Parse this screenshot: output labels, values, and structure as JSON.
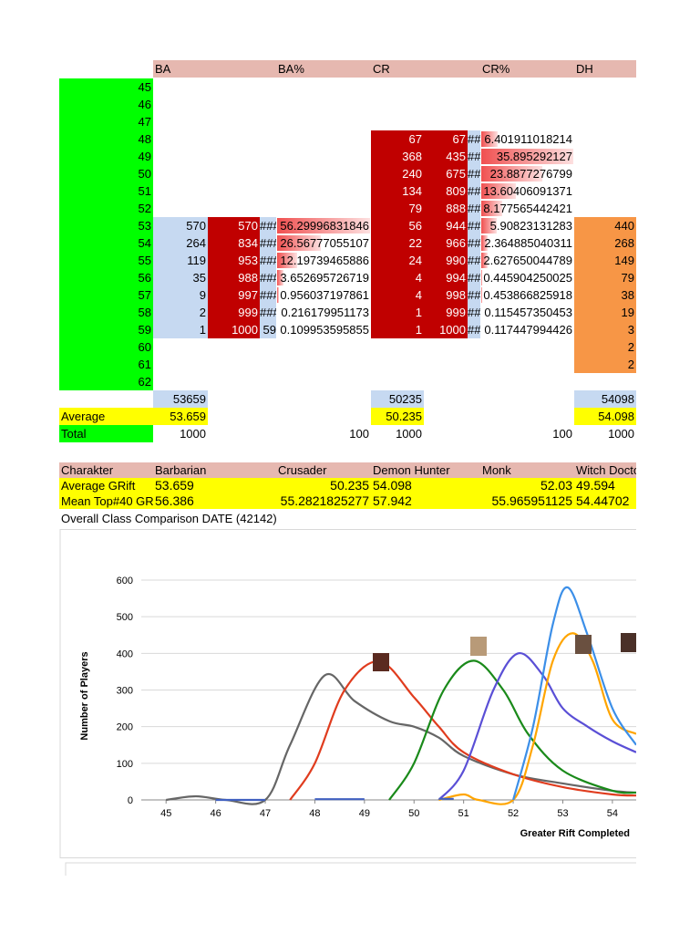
{
  "sheet": {
    "header": [
      "BA",
      "BA%",
      "CR",
      "CR%",
      "DH"
    ],
    "row_labels": [
      45,
      46,
      47,
      48,
      49,
      50,
      51,
      52,
      53,
      54,
      55,
      56,
      57,
      58,
      59,
      60,
      61,
      62
    ],
    "columns": {
      "ba": [
        null,
        null,
        null,
        null,
        null,
        null,
        null,
        null,
        570,
        264,
        119,
        35,
        9,
        2,
        1,
        null,
        null,
        null
      ],
      "ba_cum": [
        null,
        null,
        null,
        null,
        null,
        null,
        null,
        null,
        570,
        834,
        953,
        988,
        997,
        999,
        1000,
        null,
        null,
        null
      ],
      "ba_hash": [
        null,
        null,
        null,
        null,
        null,
        null,
        null,
        null,
        "###",
        "###",
        "###",
        "###",
        "###",
        "###",
        59,
        null,
        null,
        null
      ],
      "ba_pct": [
        null,
        null,
        null,
        null,
        null,
        null,
        null,
        null,
        56.29996831846,
        26.56777055107,
        12.19739465886,
        3.652695726719,
        0.956037197861,
        0.216179951173,
        0.109953595855,
        null,
        null,
        null
      ],
      "cr": [
        null,
        null,
        null,
        67,
        368,
        240,
        134,
        79,
        56,
        22,
        24,
        4,
        4,
        1,
        1,
        null,
        null,
        null
      ],
      "cr_cum": [
        null,
        null,
        null,
        67,
        435,
        675,
        809,
        888,
        944,
        966,
        990,
        994,
        998,
        999,
        1000,
        null,
        null,
        null
      ],
      "cr_hash": [
        null,
        null,
        null,
        "##",
        "##",
        "##",
        "##",
        "##",
        "##",
        "##",
        "##",
        "##",
        "##",
        "##",
        "##",
        null,
        null,
        null
      ],
      "cr_pct": [
        null,
        null,
        null,
        6.401911018214,
        35.895292127,
        23.8877276799,
        13.60406091371,
        8.177565442421,
        5.90823131283,
        2.364885040311,
        2.627650044789,
        0.445904250025,
        0.453866825918,
        0.115457350453,
        0.117447994426,
        null,
        null,
        null
      ],
      "dh": [
        null,
        null,
        null,
        null,
        null,
        null,
        null,
        null,
        440,
        268,
        149,
        79,
        38,
        19,
        3,
        2,
        2,
        null
      ]
    },
    "sum_row": {
      "ba": 53659,
      "cr": 50235,
      "dh": 54098
    },
    "average_row": {
      "label": "Average",
      "ba": 53.659,
      "cr": 50.235,
      "dh": 54.098
    },
    "total_row": {
      "label": "Total",
      "ba": 1000,
      "ba_pct": 100,
      "cr": 1000,
      "cr_pct": 100,
      "dh": 1000
    }
  },
  "comparison": {
    "header": [
      "Charakter",
      "Barbarian",
      "Crusader",
      "Demon Hunter",
      "Monk",
      "Witch Doctor"
    ],
    "rows": [
      [
        "Average GRift",
        53.659,
        50.235,
        54.098,
        52.03,
        49.594
      ],
      [
        "Mean Top#40 GRift",
        56.386,
        55.2821825277,
        57.942,
        55.965951125,
        54.44702
      ]
    ]
  },
  "caption": "Overall Class Comparison DATE (42142)",
  "chart_data": {
    "type": "line",
    "xlabel": "Greater Rift Completed",
    "ylabel": "Number of Players",
    "xlim": [
      44.5,
      54.48
    ],
    "ylim": [
      0,
      600
    ],
    "xticks": [
      45,
      46,
      47,
      48,
      49,
      50,
      51,
      52,
      53,
      54
    ],
    "yticks": [
      0,
      100,
      200,
      300,
      400,
      500,
      600
    ],
    "grid": true,
    "smooth": true,
    "series": [
      {
        "color": "#666666",
        "x": [
          45,
          45.6,
          46.2,
          47,
          47.5,
          48.2,
          48.8,
          49.5,
          50,
          50.5,
          51,
          52,
          53,
          54,
          54.48
        ],
        "values": [
          0,
          10,
          0,
          0,
          150,
          340,
          270,
          215,
          200,
          170,
          120,
          70,
          45,
          25,
          20
        ]
      },
      {
        "color": "#e03c1e",
        "x": [
          47.5,
          48,
          48.6,
          49.3,
          50,
          50.5,
          51,
          52,
          53,
          54,
          54.48
        ],
        "values": [
          0,
          100,
          300,
          378,
          280,
          200,
          130,
          70,
          35,
          15,
          12
        ]
      },
      {
        "color": "#1a8a1a",
        "x": [
          49.5,
          50,
          50.6,
          51.2,
          51.8,
          52.3,
          53,
          54,
          54.48
        ],
        "values": [
          0,
          100,
          300,
          380,
          300,
          180,
          80,
          25,
          20
        ]
      },
      {
        "color": "#5a4fd6",
        "x": [
          50.5,
          51,
          51.6,
          52.1,
          52.6,
          53,
          53.5,
          54,
          54.48
        ],
        "values": [
          0,
          80,
          300,
          400,
          340,
          250,
          200,
          160,
          130
        ]
      },
      {
        "color": "#ffa500",
        "x": [
          50.5,
          51,
          51.3,
          52,
          52.4,
          52.8,
          53.2,
          53.6,
          54,
          54.48
        ],
        "values": [
          0,
          15,
          0,
          0,
          150,
          380,
          455,
          380,
          220,
          180
        ]
      },
      {
        "color": "#3c8fe8",
        "x": [
          52,
          52.4,
          52.8,
          53.1,
          53.5,
          54,
          54.48
        ],
        "values": [
          0,
          200,
          480,
          580,
          450,
          250,
          150
        ]
      },
      {
        "color": "#4060c0",
        "x": [
          46,
          47,
          47.5,
          48,
          49,
          49.5,
          50.5,
          50.8
        ],
        "values": [
          0,
          0,
          null,
          2,
          2,
          null,
          3,
          3
        ]
      }
    ]
  }
}
